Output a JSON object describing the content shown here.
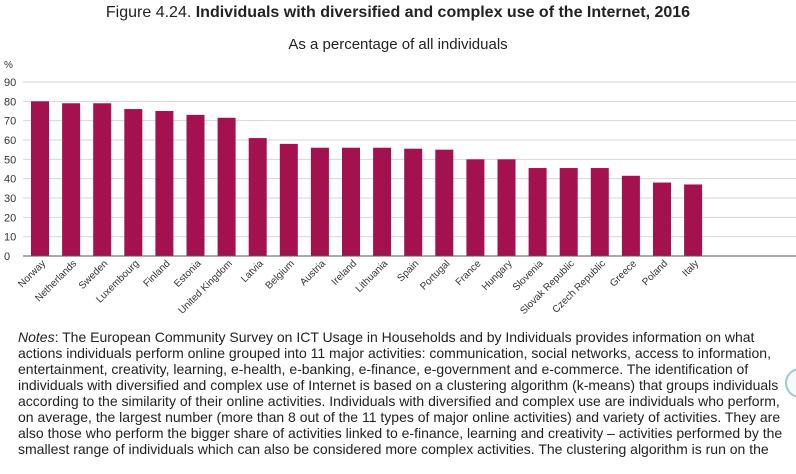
{
  "figure": {
    "label": "Figure 4.24. ",
    "title": "Individuals with diversified and complex use of the Internet, 2016",
    "subtitle": "As a percentage of all individuals"
  },
  "chart_data": {
    "type": "bar",
    "title": "Individuals with diversified and complex use of the Internet, 2016",
    "subtitle": "As a percentage of all individuals",
    "ylabel": "%",
    "ylim": [
      0,
      90
    ],
    "yticks": [
      0,
      10,
      20,
      30,
      40,
      50,
      60,
      70,
      80,
      90
    ],
    "grid": true,
    "bar_color": "#a3124f",
    "categories": [
      "Norway",
      "Netherlands",
      "Sweden",
      "Luxembourg",
      "Finland",
      "Estonia",
      "United Kingdom",
      "Latvia",
      "Belgium",
      "Austria",
      "Ireland",
      "Lithuania",
      "Spain",
      "Portugal",
      "France",
      "Hungary",
      "Slovenia",
      "Slovak Republic",
      "Czech Republic",
      "Greece",
      "Poland",
      "Italy"
    ],
    "values": [
      80,
      79,
      79,
      76,
      75,
      73,
      71.5,
      61,
      58,
      56,
      56,
      56,
      55.5,
      55,
      50,
      50,
      45.5,
      45.5,
      45.5,
      41.5,
      38,
      37
    ]
  },
  "notes": {
    "label": "Notes",
    "text": ": The European Community Survey on ICT Usage in Households and by Individuals provides information on what actions individuals perform online grouped into 11 major activities: communication, social networks, access to information, entertainment, creativity, learning, e-health, e-banking, e-finance, e-government and e-commerce. The identification of individuals with diversified and complex use of Internet is based on a clustering algorithm (k-means) that groups individuals according to the similarity of their online activities. Individuals with diversified and complex use are individuals who perform, on average, the largest number (more than 8 out of the 11 types of major online activities) and variety of activities. They are also those who perform the bigger share of activities linked to e-finance, learning and creativity – activities performed by the smallest range of individuals which can also be considered more complex activities. The clustering algorithm is run on the"
  }
}
